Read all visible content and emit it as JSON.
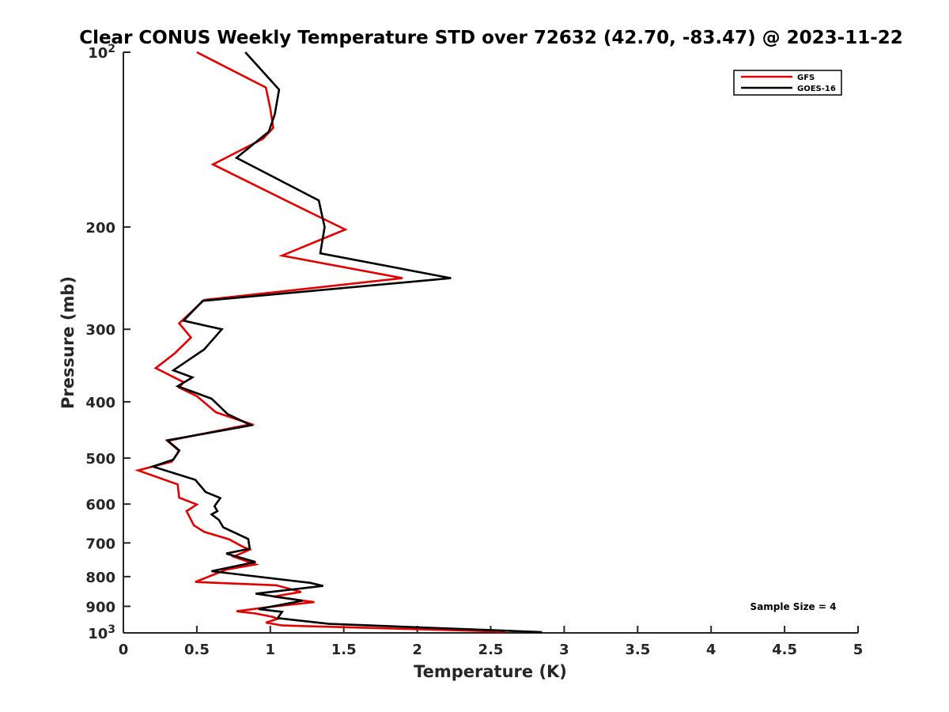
{
  "chart_data": {
    "type": "line",
    "title": "Clear CONUS Weekly Temperature STD over 72632 (42.70, -83.47) @ 2023-11-22",
    "xlabel": "Temperature (K)",
    "ylabel": "Pressure (mb)",
    "xlim": [
      0,
      5
    ],
    "ylim": [
      100,
      1000
    ],
    "y_scale": "log",
    "y_reversed": true,
    "x_ticks": [
      0,
      0.5,
      1,
      1.5,
      2,
      2.5,
      3,
      3.5,
      4,
      4.5,
      5
    ],
    "x_tick_labels": [
      "0",
      "0.5",
      "1",
      "1.5",
      "2",
      "2.5",
      "3",
      "3.5",
      "4",
      "4.5",
      "5"
    ],
    "y_ticks": [
      100,
      200,
      300,
      400,
      500,
      600,
      700,
      800,
      900,
      1000
    ],
    "y_tick_labels": [
      "10²",
      "200",
      "300",
      "400",
      "500",
      "600",
      "700",
      "800",
      "900",
      "10³"
    ],
    "grid": false,
    "legend_position": "top-right",
    "annotation": "Sample Size = 4",
    "series": [
      {
        "name": "GFS",
        "color": "#e00000",
        "points": [
          [
            0.5,
            100
          ],
          [
            0.97,
            115
          ],
          [
            1.0,
            125
          ],
          [
            1.02,
            135
          ],
          [
            0.95,
            141
          ],
          [
            0.61,
            156
          ],
          [
            1.2,
            185
          ],
          [
            1.51,
            202
          ],
          [
            1.08,
            224
          ],
          [
            1.9,
            245
          ],
          [
            0.55,
            267
          ],
          [
            0.38,
            293
          ],
          [
            0.46,
            310
          ],
          [
            0.35,
            330
          ],
          [
            0.22,
            350
          ],
          [
            0.41,
            370
          ],
          [
            0.38,
            378
          ],
          [
            0.5,
            391
          ],
          [
            0.63,
            417
          ],
          [
            0.87,
            437
          ],
          [
            0.3,
            467
          ],
          [
            0.38,
            486
          ],
          [
            0.33,
            507
          ],
          [
            0.1,
            525
          ],
          [
            0.37,
            555
          ],
          [
            0.38,
            585
          ],
          [
            0.5,
            601
          ],
          [
            0.43,
            617
          ],
          [
            0.48,
            653
          ],
          [
            0.55,
            670
          ],
          [
            0.72,
            690
          ],
          [
            0.81,
            710
          ],
          [
            0.86,
            719
          ],
          [
            0.75,
            739
          ],
          [
            0.9,
            762
          ],
          [
            0.7,
            778
          ],
          [
            0.49,
            817
          ],
          [
            1.04,
            828
          ],
          [
            1.21,
            850
          ],
          [
            1.02,
            866
          ],
          [
            1.3,
            885
          ],
          [
            0.98,
            903
          ],
          [
            0.77,
            918
          ],
          [
            0.9,
            926
          ],
          [
            1.02,
            939
          ],
          [
            1.05,
            946
          ],
          [
            0.97,
            960
          ],
          [
            1.08,
            971
          ],
          [
            2.6,
            995
          ]
        ]
      },
      {
        "name": "GOES-16",
        "color": "#000000",
        "points": [
          [
            0.83,
            100
          ],
          [
            1.06,
            116
          ],
          [
            1.03,
            128
          ],
          [
            0.99,
            137
          ],
          [
            0.77,
            152
          ],
          [
            1.33,
            180
          ],
          [
            1.37,
            200
          ],
          [
            1.34,
            222
          ],
          [
            2.23,
            245
          ],
          [
            0.54,
            268
          ],
          [
            0.41,
            290
          ],
          [
            0.67,
            300
          ],
          [
            0.55,
            325
          ],
          [
            0.34,
            353
          ],
          [
            0.47,
            363
          ],
          [
            0.37,
            376
          ],
          [
            0.6,
            395
          ],
          [
            0.71,
            420
          ],
          [
            0.87,
            439
          ],
          [
            0.3,
            466
          ],
          [
            0.38,
            485
          ],
          [
            0.34,
            503
          ],
          [
            0.2,
            517
          ],
          [
            0.49,
            545
          ],
          [
            0.56,
            572
          ],
          [
            0.66,
            586
          ],
          [
            0.62,
            605
          ],
          [
            0.64,
            617
          ],
          [
            0.6,
            625
          ],
          [
            0.65,
            639
          ],
          [
            0.68,
            658
          ],
          [
            0.85,
            689
          ],
          [
            0.86,
            716
          ],
          [
            0.7,
            730
          ],
          [
            0.9,
            755
          ],
          [
            0.6,
            783
          ],
          [
            1.27,
            820
          ],
          [
            1.36,
            830
          ],
          [
            0.9,
            856
          ],
          [
            1.22,
            880
          ],
          [
            0.92,
            910
          ],
          [
            1.08,
            920
          ],
          [
            1.05,
            943
          ],
          [
            1.4,
            965
          ],
          [
            2.85,
            997
          ]
        ]
      }
    ]
  }
}
